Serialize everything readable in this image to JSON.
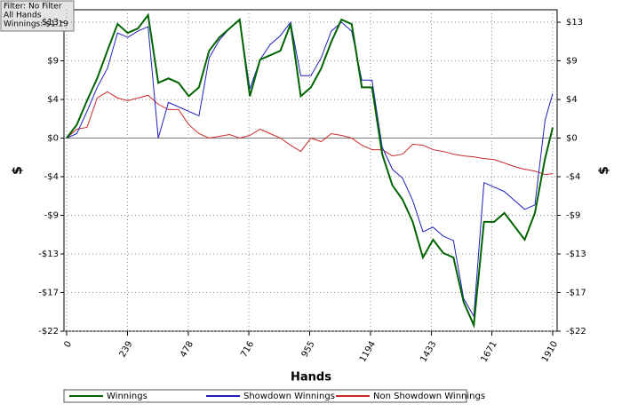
{
  "chart_data": {
    "type": "line",
    "annotations": [
      "Filter: No Filter",
      "All Hands",
      "Winnings: $1.19"
    ],
    "xlabel": "Hands",
    "ylabel": "$",
    "y2label": "$",
    "x": [
      0,
      40,
      80,
      120,
      160,
      200,
      240,
      280,
      320,
      360,
      400,
      440,
      480,
      520,
      560,
      600,
      640,
      680,
      720,
      760,
      800,
      840,
      880,
      920,
      960,
      1000,
      1040,
      1080,
      1120,
      1160,
      1200,
      1240,
      1280,
      1320,
      1360,
      1400,
      1440,
      1480,
      1520,
      1560,
      1600,
      1640,
      1680,
      1720,
      1760,
      1800,
      1840,
      1880,
      1910
    ],
    "series": [
      {
        "name": "Winnings",
        "color": "#006400",
        "values": [
          0,
          1.5,
          4.2,
          6.7,
          9.8,
          12.8,
          11.8,
          12.3,
          13.8,
          6.2,
          6.7,
          6.2,
          4.7,
          5.7,
          9.8,
          11.3,
          12.3,
          13.3,
          4.7,
          8.8,
          9.3,
          9.8,
          12.8,
          4.7,
          5.7,
          7.8,
          10.8,
          13.3,
          12.8,
          5.7,
          5.7,
          -1.8,
          -5.3,
          -6.9,
          -9.4,
          -13.4,
          -11.4,
          -12.9,
          -13.4,
          -18.4,
          -21,
          -9.4,
          -9.4,
          -8.4,
          -9.9,
          -11.4,
          -8.4,
          -2.3,
          1.19
        ]
      },
      {
        "name": "Showdown Winnings",
        "color": "#1f1fbf",
        "values": [
          0,
          0.5,
          3,
          5.7,
          7.8,
          11.8,
          11.3,
          12,
          12.5,
          0,
          4,
          3.5,
          3,
          2.5,
          9,
          11,
          12.3,
          13.3,
          5.5,
          8.8,
          10.5,
          11.5,
          13,
          7,
          7,
          9,
          12,
          13,
          12,
          6.5,
          6.5,
          -1,
          -3.5,
          -4.5,
          -7,
          -10.5,
          -10,
          -11,
          -11.5,
          -18,
          -20,
          -5,
          -5.5,
          -6,
          -7,
          -8,
          -7.5,
          2,
          5
        ]
      },
      {
        "name": "Non Showdown Winnings",
        "color": "#cc2a2a",
        "values": [
          0,
          1,
          1.2,
          4.5,
          5.2,
          4.5,
          4.2,
          4.5,
          4.8,
          3.8,
          3.2,
          3.2,
          1.5,
          0.5,
          0,
          0.2,
          0.4,
          0,
          0.3,
          1,
          0.5,
          0,
          -0.8,
          -1.5,
          0,
          -0.4,
          0.5,
          0.3,
          0,
          -0.8,
          -1.3,
          -1.3,
          -2,
          -1.8,
          -0.7,
          -0.8,
          -1.3,
          -1.5,
          -1.8,
          -2,
          -2.1,
          -2.3,
          -2.4,
          -2.8,
          -3.2,
          -3.5,
          -3.7,
          -4.1,
          -4
        ]
      }
    ],
    "xlim": [
      0,
      1910
    ],
    "xticks": [
      0,
      239,
      478,
      716,
      955,
      1194,
      1433,
      1671,
      1910
    ],
    "ylim": [
      -21.67,
      14.4
    ],
    "yticks": [
      {
        "value": 13,
        "label": "$13"
      },
      {
        "value": 8.67,
        "label": "$9"
      },
      {
        "value": 4.33,
        "label": "$4"
      },
      {
        "value": 0,
        "label": "$0"
      },
      {
        "value": -4.33,
        "label": "-$4"
      },
      {
        "value": -8.67,
        "label": "-$9"
      },
      {
        "value": -13,
        "label": "-$13"
      },
      {
        "value": -17.33,
        "label": "-$17"
      },
      {
        "value": -21.67,
        "label": "-$22"
      }
    ],
    "y2lim": [
      -21.67,
      14.4
    ],
    "y2ticks": [
      {
        "value": 13,
        "label": "$13"
      },
      {
        "value": 8.67,
        "label": "$9"
      },
      {
        "value": 4.33,
        "label": "$4"
      },
      {
        "value": 0,
        "label": "$0"
      },
      {
        "value": -4.33,
        "label": "-$4"
      },
      {
        "value": -8.67,
        "label": "-$9"
      },
      {
        "value": -13,
        "label": "-$13"
      },
      {
        "value": -17.33,
        "label": "-$17"
      },
      {
        "value": -21.67,
        "label": "-$22"
      }
    ],
    "grid": true,
    "legend": "bottom"
  }
}
